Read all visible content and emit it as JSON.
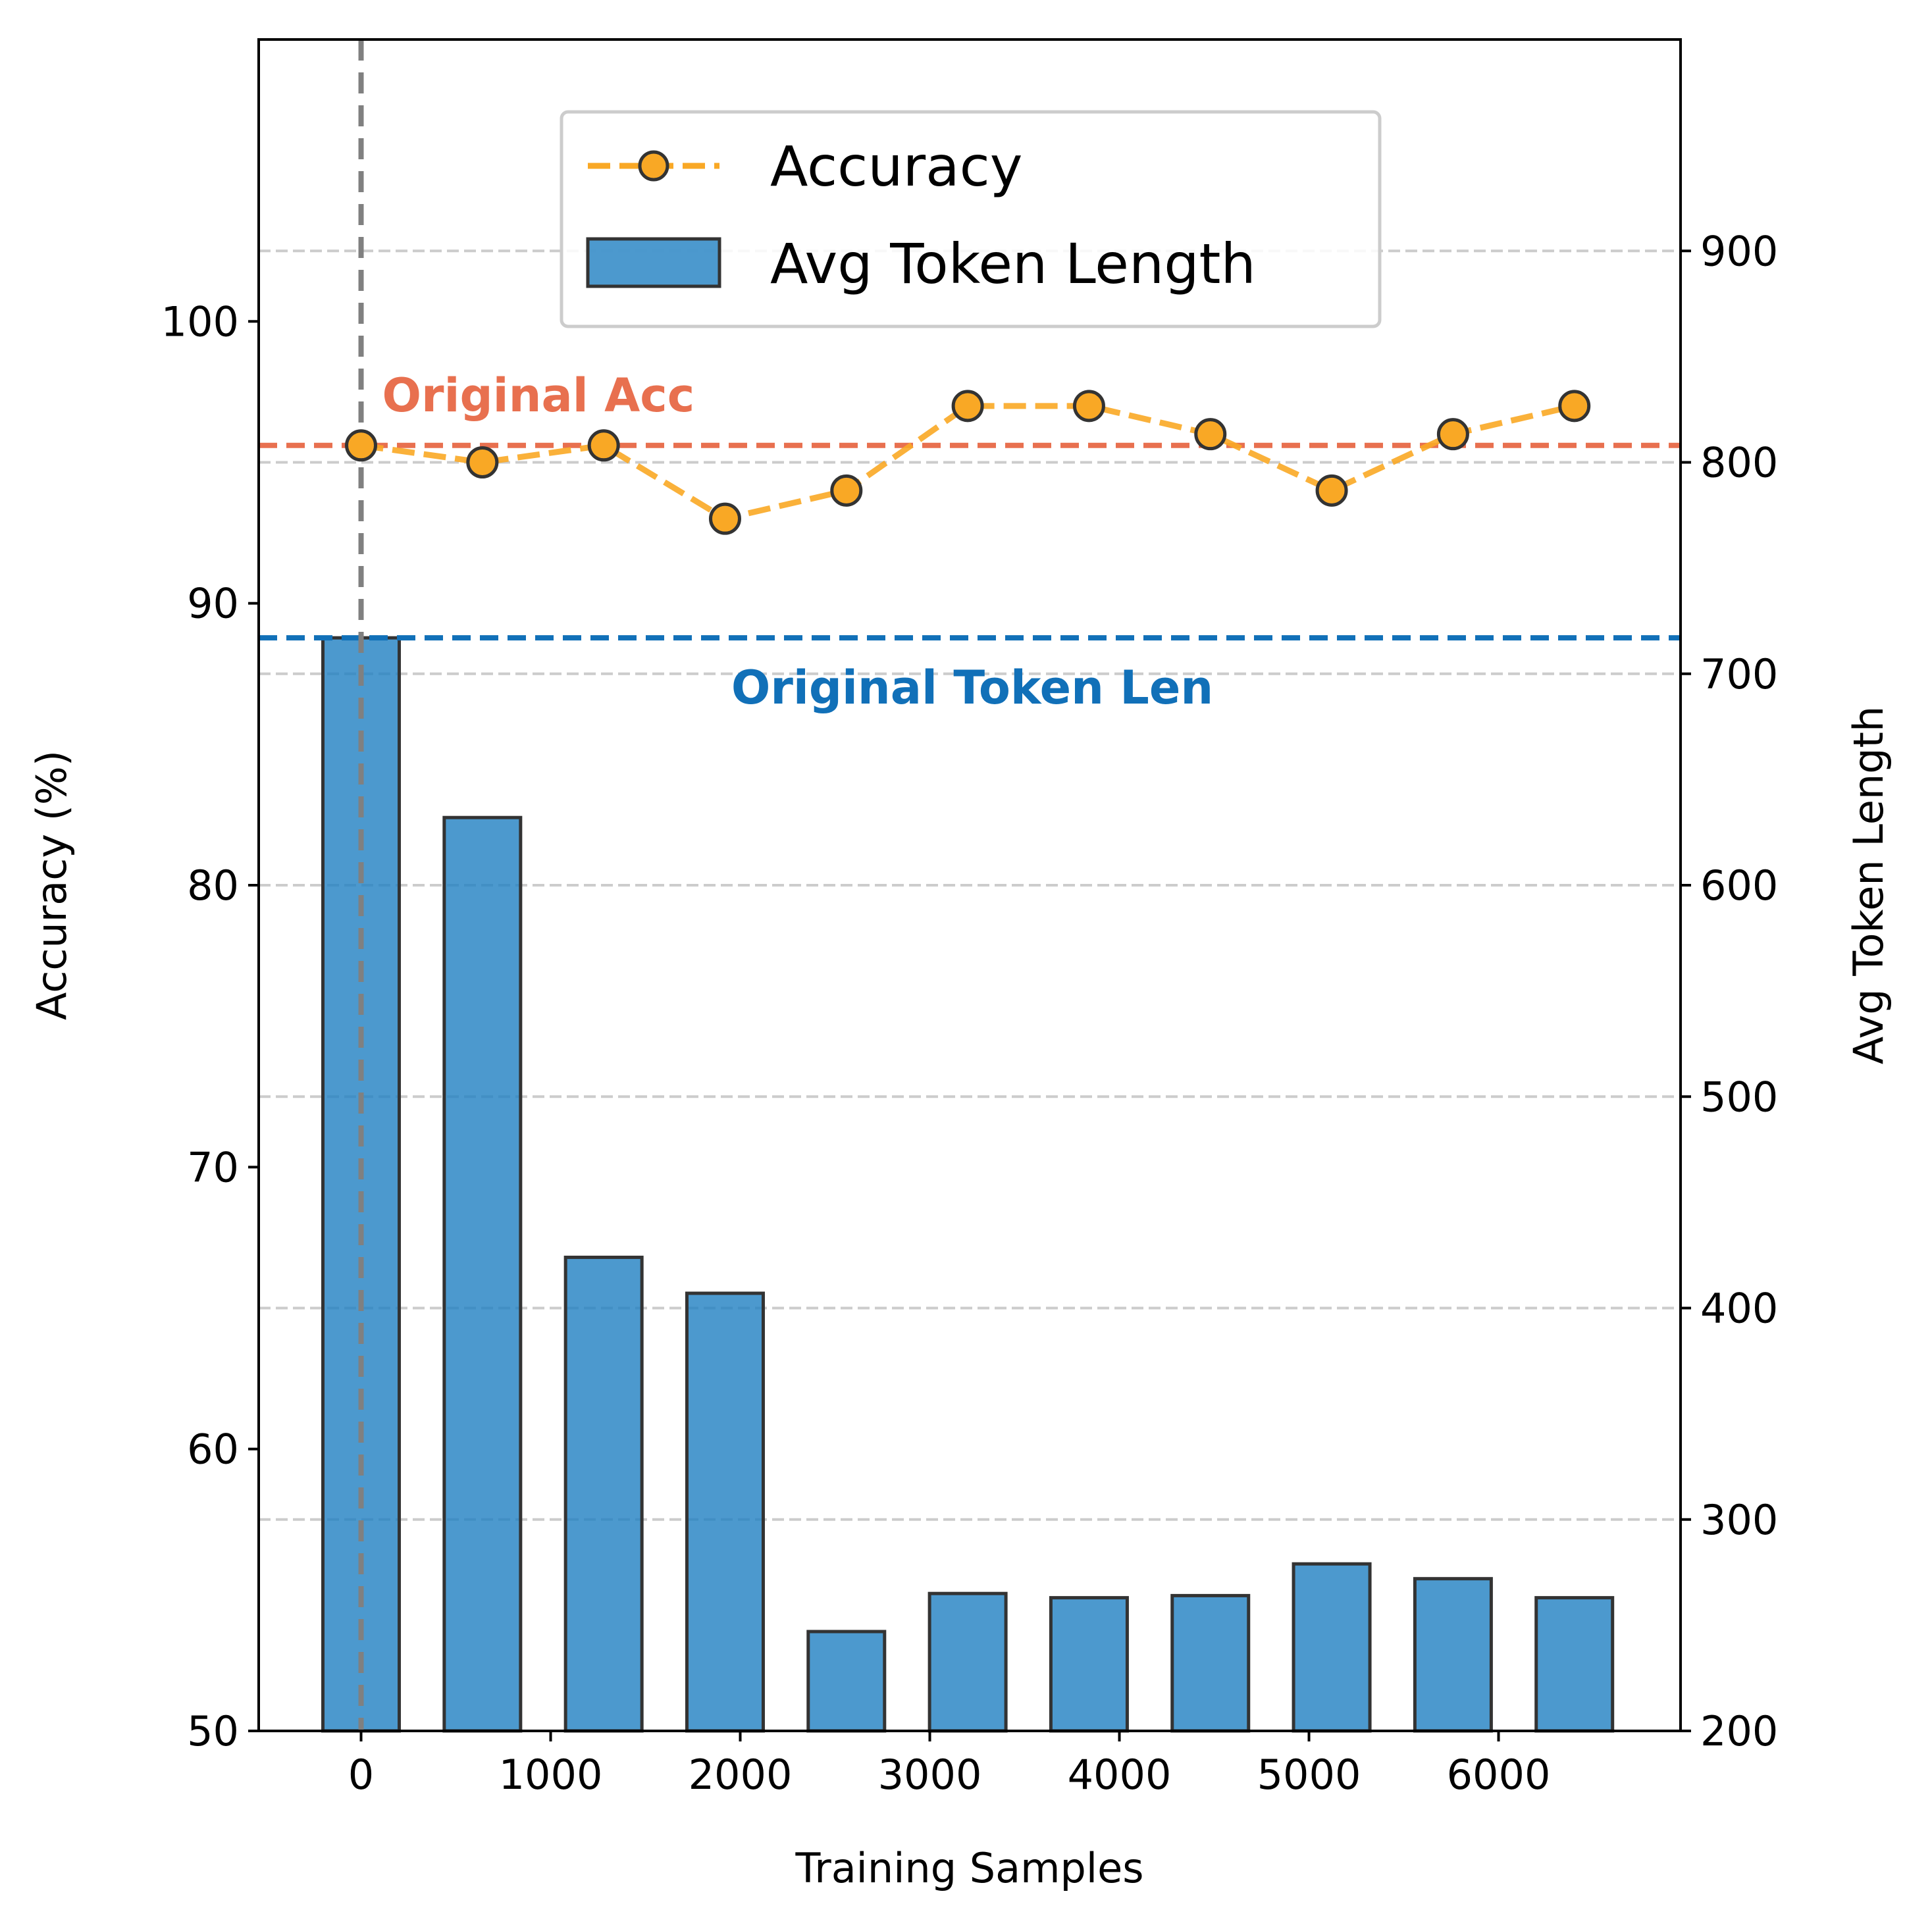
{
  "chart_data": {
    "type": "bar+line",
    "xlabel": "Training Samples",
    "ylabel_left": "Accuracy (%)",
    "ylabel_right": "Avg Token Length",
    "x": [
      0,
      640,
      1280,
      1920,
      2560,
      3200,
      3840,
      4480,
      5120,
      5760,
      6400
    ],
    "x_ticks": [
      0,
      1000,
      2000,
      3000,
      4000,
      5000,
      6000
    ],
    "x_lim": [
      -540,
      6960
    ],
    "y_left_ticks": [
      50,
      60,
      70,
      80,
      90,
      100
    ],
    "y_left_lim": [
      50,
      110
    ],
    "y_right_ticks": [
      200,
      300,
      400,
      500,
      600,
      700,
      800,
      900
    ],
    "y_right_lim": [
      200,
      1000
    ],
    "grid": "horizontal dashed (right axis)",
    "series": [
      {
        "name": "Accuracy",
        "kind": "line",
        "axis": "left",
        "color": "#f9a825",
        "values": [
          95.6,
          95.0,
          95.6,
          93.0,
          94.0,
          97.0,
          97.0,
          96.0,
          94.0,
          96.0,
          97.0
        ]
      },
      {
        "name": "Avg Token Length",
        "kind": "bar",
        "axis": "right",
        "color": "#1f7fc2",
        "values": [
          717,
          632,
          424,
          407,
          247,
          265,
          263,
          264,
          279,
          272,
          263
        ]
      }
    ],
    "reference_lines": [
      {
        "label": "Original Acc",
        "axis": "left",
        "value": 95.6,
        "color": "#e8704f"
      },
      {
        "label": "Original Token Len",
        "axis": "right",
        "value": 717,
        "color": "#1170b8"
      }
    ],
    "vertical_marker": {
      "x": 0,
      "color": "#808080"
    },
    "legend": {
      "position": "top-center",
      "entries": [
        "Accuracy",
        "Avg Token Length"
      ]
    }
  }
}
